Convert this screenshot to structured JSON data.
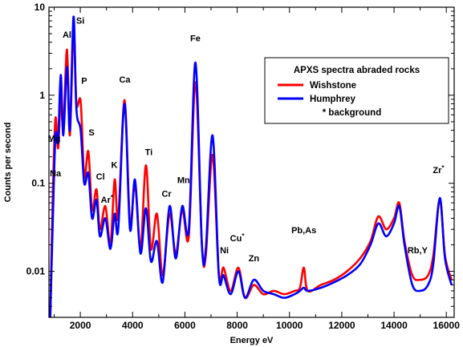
{
  "chart_data": {
    "type": "line",
    "title": "",
    "xlabel": "Energy eV",
    "ylabel": "Counts per second",
    "x_scale": "linear",
    "y_scale": "log",
    "xlim": [
      800,
      16300
    ],
    "ylim": [
      0.003,
      10
    ],
    "x_ticks": [
      2000,
      4000,
      6000,
      8000,
      10000,
      12000,
      14000,
      16000
    ],
    "x_tick_labels": [
      "2000",
      "4000",
      "6000",
      "8000",
      "10000",
      "12000",
      "14000",
      "16000"
    ],
    "y_ticks": [
      0.01,
      0.1,
      1,
      10
    ],
    "y_tick_labels": [
      "0.01",
      "0.1",
      "1",
      "10"
    ],
    "grid": false,
    "legend": {
      "title": "APXS spectra abraded rocks",
      "placement": "top-right",
      "note": "* background"
    },
    "series": [
      {
        "name": "Wishstone",
        "color": "#ff0000",
        "points": [
          [
            850,
            0.003
          ],
          [
            950,
            0.08
          ],
          [
            1050,
            0.55
          ],
          [
            1150,
            0.25
          ],
          [
            1250,
            0.9
          ],
          [
            1350,
            0.45
          ],
          [
            1490,
            3.3
          ],
          [
            1600,
            0.35
          ],
          [
            1740,
            5.6
          ],
          [
            1850,
            0.8
          ],
          [
            2013,
            0.85
          ],
          [
            2150,
            0.12
          ],
          [
            2307,
            0.23
          ],
          [
            2450,
            0.05
          ],
          [
            2620,
            0.085
          ],
          [
            2750,
            0.03
          ],
          [
            2958,
            0.055
          ],
          [
            3150,
            0.02
          ],
          [
            3313,
            0.11
          ],
          [
            3450,
            0.04
          ],
          [
            3691,
            0.88
          ],
          [
            3900,
            0.035
          ],
          [
            4090,
            0.1
          ],
          [
            4300,
            0.018
          ],
          [
            4510,
            0.16
          ],
          [
            4700,
            0.018
          ],
          [
            4930,
            0.045
          ],
          [
            5150,
            0.009
          ],
          [
            5415,
            0.045
          ],
          [
            5650,
            0.016
          ],
          [
            5898,
            0.05
          ],
          [
            6150,
            0.025
          ],
          [
            6404,
            1.4
          ],
          [
            6650,
            0.02
          ],
          [
            6800,
            0.015
          ],
          [
            7058,
            0.21
          ],
          [
            7300,
            0.009
          ],
          [
            7478,
            0.011
          ],
          [
            7750,
            0.006
          ],
          [
            8047,
            0.011
          ],
          [
            8300,
            0.005
          ],
          [
            8638,
            0.007
          ],
          [
            9000,
            0.0055
          ],
          [
            9400,
            0.006
          ],
          [
            9800,
            0.0055
          ],
          [
            10200,
            0.006
          ],
          [
            10400,
            0.0065
          ],
          [
            10550,
            0.011
          ],
          [
            10700,
            0.006
          ],
          [
            11200,
            0.007
          ],
          [
            11700,
            0.008
          ],
          [
            12200,
            0.01
          ],
          [
            12700,
            0.014
          ],
          [
            13100,
            0.022
          ],
          [
            13400,
            0.042
          ],
          [
            13700,
            0.03
          ],
          [
            14000,
            0.04
          ],
          [
            14200,
            0.06
          ],
          [
            14400,
            0.022
          ],
          [
            14700,
            0.009
          ],
          [
            15000,
            0.008
          ],
          [
            15300,
            0.009
          ],
          [
            15500,
            0.015
          ],
          [
            15750,
            0.065
          ],
          [
            15950,
            0.015
          ],
          [
            16200,
            0.008
          ]
        ]
      },
      {
        "name": "Humphrey",
        "color": "#0000ff",
        "points": [
          [
            850,
            0.003
          ],
          [
            950,
            0.04
          ],
          [
            1050,
            0.35
          ],
          [
            1150,
            0.3
          ],
          [
            1250,
            1.7
          ],
          [
            1350,
            0.35
          ],
          [
            1490,
            2.1
          ],
          [
            1600,
            0.4
          ],
          [
            1740,
            7.8
          ],
          [
            1850,
            0.7
          ],
          [
            2013,
            0.4
          ],
          [
            2150,
            0.1
          ],
          [
            2307,
            0.13
          ],
          [
            2450,
            0.04
          ],
          [
            2620,
            0.065
          ],
          [
            2750,
            0.025
          ],
          [
            2958,
            0.04
          ],
          [
            3150,
            0.018
          ],
          [
            3313,
            0.045
          ],
          [
            3450,
            0.03
          ],
          [
            3691,
            0.8
          ],
          [
            3900,
            0.03
          ],
          [
            4090,
            0.11
          ],
          [
            4300,
            0.016
          ],
          [
            4510,
            0.052
          ],
          [
            4700,
            0.013
          ],
          [
            4930,
            0.022
          ],
          [
            5150,
            0.0075
          ],
          [
            5415,
            0.055
          ],
          [
            5650,
            0.014
          ],
          [
            5898,
            0.055
          ],
          [
            6150,
            0.03
          ],
          [
            6404,
            2.35
          ],
          [
            6650,
            0.02
          ],
          [
            6800,
            0.018
          ],
          [
            7058,
            0.35
          ],
          [
            7300,
            0.009
          ],
          [
            7478,
            0.009
          ],
          [
            7750,
            0.0055
          ],
          [
            8047,
            0.01
          ],
          [
            8300,
            0.005
          ],
          [
            8638,
            0.008
          ],
          [
            9000,
            0.006
          ],
          [
            9400,
            0.0055
          ],
          [
            9800,
            0.005
          ],
          [
            10200,
            0.0055
          ],
          [
            10400,
            0.006
          ],
          [
            10550,
            0.0065
          ],
          [
            10700,
            0.006
          ],
          [
            11200,
            0.0065
          ],
          [
            11700,
            0.0075
          ],
          [
            12200,
            0.009
          ],
          [
            12700,
            0.012
          ],
          [
            13100,
            0.02
          ],
          [
            13400,
            0.035
          ],
          [
            13700,
            0.025
          ],
          [
            14000,
            0.035
          ],
          [
            14200,
            0.055
          ],
          [
            14400,
            0.02
          ],
          [
            14700,
            0.007
          ],
          [
            15000,
            0.006
          ],
          [
            15300,
            0.007
          ],
          [
            15500,
            0.012
          ],
          [
            15750,
            0.068
          ],
          [
            15950,
            0.014
          ],
          [
            16200,
            0.007
          ]
        ]
      }
    ],
    "annotations": [
      {
        "text": "Al",
        "x": 1490,
        "y": 4.5
      },
      {
        "text": "Si",
        "x": 2000,
        "y": 6.5
      },
      {
        "text": "P",
        "x": 2150,
        "y": 1.35
      },
      {
        "text": "S",
        "x": 2430,
        "y": 0.35
      },
      {
        "text": "Ca",
        "x": 3700,
        "y": 1.4
      },
      {
        "text": "Ti",
        "x": 4620,
        "y": 0.21
      },
      {
        "text": "K",
        "x": 3300,
        "y": 0.15
      },
      {
        "text": "Cl",
        "x": 2770,
        "y": 0.11
      },
      {
        "text": "Ar*",
        "x": 3020,
        "y": 0.06
      },
      {
        "text": "Mg",
        "x": 1000,
        "y": 0.3
      },
      {
        "text": "Na",
        "x": 1050,
        "y": 0.12
      },
      {
        "text": "Cr",
        "x": 5300,
        "y": 0.07
      },
      {
        "text": "Mn",
        "x": 5950,
        "y": 0.1
      },
      {
        "text": "Fe",
        "x": 6400,
        "y": 4.1
      },
      {
        "text": "Ni",
        "x": 7510,
        "y": 0.016
      },
      {
        "text": "Cu*",
        "x": 8000,
        "y": 0.022
      },
      {
        "text": "Zn",
        "x": 8640,
        "y": 0.013
      },
      {
        "text": "Pb,As",
        "x": 10550,
        "y": 0.027
      },
      {
        "text": "Rb,Y",
        "x": 14900,
        "y": 0.016
      },
      {
        "text": "Zr*",
        "x": 15700,
        "y": 0.13
      }
    ]
  }
}
